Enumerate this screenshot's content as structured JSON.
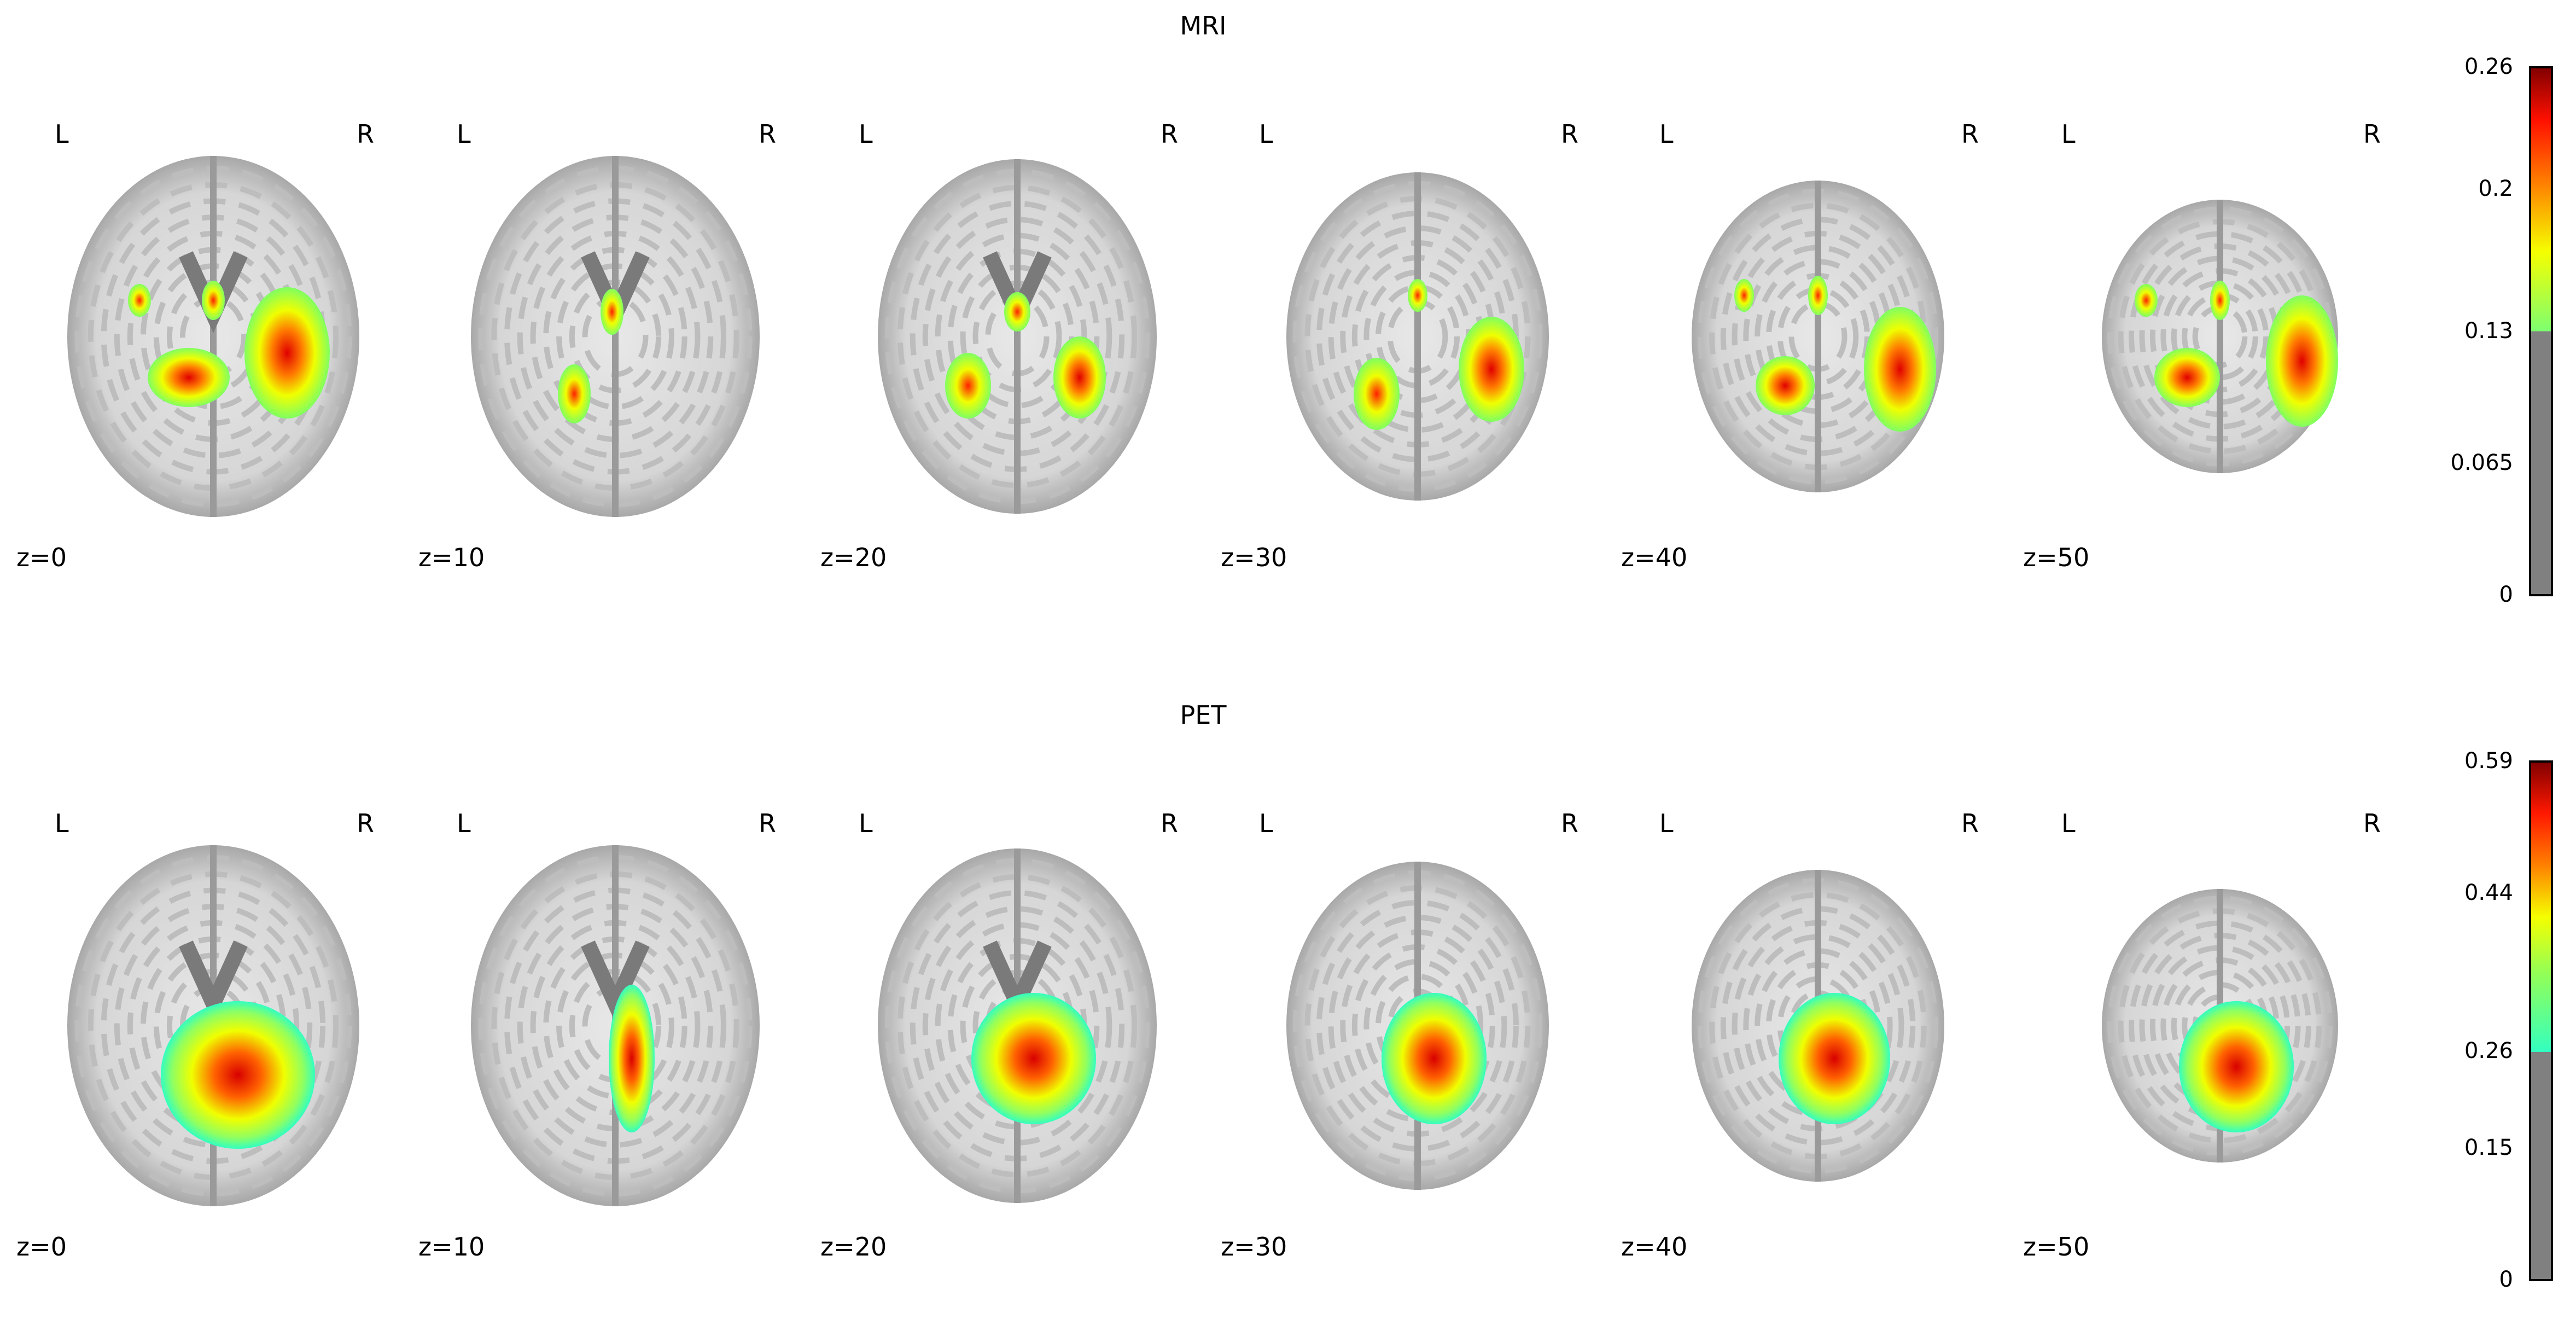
{
  "chart_data": [
    {
      "type": "heatmap",
      "title": "MRI",
      "orientation_labels": {
        "left": "L",
        "right": "R"
      },
      "slices": [
        "z=0",
        "z=10",
        "z=20",
        "z=30",
        "z=40",
        "z=50"
      ],
      "colorbar": {
        "ticks": [
          "0",
          "0.065",
          "0.13",
          "0.2",
          "0.26"
        ],
        "range": [
          0,
          0.26
        ],
        "threshold": 0.13,
        "colormap": "cold_hot-like (green-yellow-red)",
        "below_threshold_color": "#808080"
      }
    },
    {
      "type": "heatmap",
      "title": "PET",
      "orientation_labels": {
        "left": "L",
        "right": "R"
      },
      "slices": [
        "z=0",
        "z=10",
        "z=20",
        "z=30",
        "z=40",
        "z=50"
      ],
      "colorbar": {
        "ticks": [
          "0",
          "0.15",
          "0.26",
          "0.44",
          "0.59"
        ],
        "range": [
          0,
          0.59
        ],
        "threshold": 0.26,
        "colormap": "cyan-green-yellow-red",
        "below_threshold_color": "#808080"
      }
    }
  ]
}
